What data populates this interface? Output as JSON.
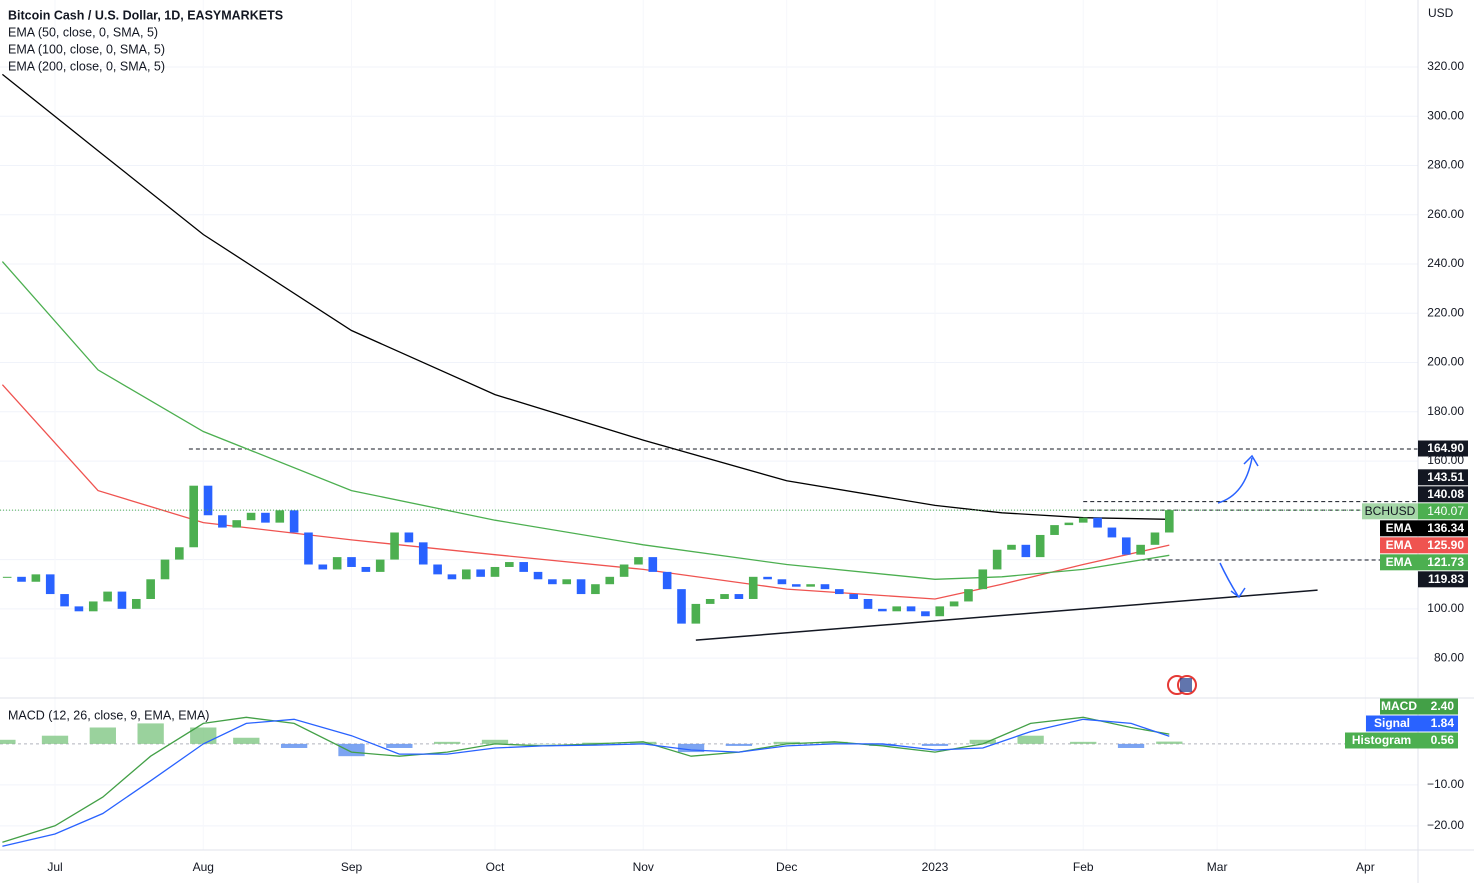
{
  "chart_data": [
    {
      "type": "candlestick",
      "title": "Bitcoin Cash / U.S. Dollar, 1D, EASYMARKETS",
      "currency": "USD",
      "symbol": "BCHUSD",
      "last_label": "140.07",
      "up_color": "#4caf50",
      "down_color": "#2962ff",
      "grid": true,
      "x": [
        -10,
        -7,
        -4,
        -1,
        2,
        5,
        8,
        11,
        14,
        17,
        20,
        23,
        26,
        29,
        32,
        35,
        38,
        41,
        44,
        47,
        50,
        53,
        56,
        59,
        62,
        65,
        68,
        71,
        74,
        77,
        80,
        83,
        86,
        89,
        92,
        95,
        98,
        101,
        104,
        107,
        110,
        113,
        116,
        119,
        122,
        125,
        128,
        131,
        134,
        137,
        140,
        143,
        146,
        149,
        152,
        155,
        158,
        161,
        164,
        167,
        170,
        173,
        176,
        179,
        182,
        185,
        188,
        191,
        194,
        197,
        200,
        203,
        206,
        209,
        212,
        215,
        218,
        221,
        224,
        227,
        230,
        233
      ],
      "close": [
        113,
        111,
        114,
        106,
        101,
        99,
        103,
        107,
        100,
        104,
        112,
        120,
        125,
        150,
        138,
        133,
        136,
        139,
        135,
        140,
        131,
        118,
        116,
        121,
        117,
        115,
        120,
        131,
        127,
        118,
        114,
        112,
        116,
        113,
        117,
        119,
        115,
        112,
        110,
        112,
        106,
        110,
        113,
        118,
        121,
        115,
        108,
        94,
        102,
        104,
        106,
        104,
        113,
        112,
        110,
        109,
        110,
        108,
        106,
        104,
        100,
        99,
        101,
        99,
        97,
        101,
        103,
        108,
        116,
        124,
        126,
        121,
        130,
        134,
        135,
        137,
        133,
        129,
        122,
        126,
        131,
        140.07
      ],
      "series": [
        {
          "name": "EMA",
          "title": "EMA (50, close, 0, SMA, 5)",
          "color": "#ef5350",
          "label": "125.90",
          "x": [
            -11,
            9,
            31,
            62,
            92,
            123,
            153,
            184,
            198,
            215,
            233
          ],
          "values": [
            191,
            148,
            135,
            128,
            122,
            116,
            108,
            104,
            110,
            118,
            125.9
          ]
        },
        {
          "name": "EMA",
          "title": "EMA (100, close, 0, SMA, 5)",
          "color": "#4caf50",
          "label": "121.73",
          "x": [
            -11,
            9,
            31,
            62,
            92,
            123,
            153,
            184,
            198,
            215,
            233
          ],
          "values": [
            241,
            197,
            172,
            148,
            136,
            126,
            118,
            112,
            113,
            116,
            121.73
          ]
        },
        {
          "name": "EMA",
          "title": "EMA (200, close, 0, SMA, 5)",
          "color": "#000000",
          "label": "136.34",
          "x": [
            -11,
            9,
            31,
            62,
            92,
            123,
            153,
            184,
            198,
            215,
            233
          ],
          "values": [
            317,
            286,
            252,
            213,
            187,
            168.5,
            152,
            142,
            139,
            137,
            136.34
          ]
        }
      ],
      "levels": [
        {
          "value": 164.9,
          "label": "164.90",
          "x": 28
        },
        {
          "value": 143.51,
          "label": "143.51",
          "x": 215
        },
        {
          "value": 140.08,
          "label": "140.08",
          "x": 215
        },
        {
          "value": 119.83,
          "label": "119.83",
          "x": 227
        }
      ],
      "trendline": {
        "x": [
          134,
          264
        ],
        "y": [
          87.3,
          107.6
        ]
      },
      "xlim": [
        -11.5,
        285
      ],
      "xticks": [
        {
          "value": 0,
          "label": "Jul"
        },
        {
          "value": 31,
          "label": "Aug"
        },
        {
          "value": 62,
          "label": "Sep"
        },
        {
          "value": 92,
          "label": "Oct"
        },
        {
          "value": 123,
          "label": "Nov"
        },
        {
          "value": 153,
          "label": "Dec"
        },
        {
          "value": 184,
          "label": "2023"
        },
        {
          "value": 215,
          "label": "Feb"
        },
        {
          "value": 243,
          "label": "Mar"
        },
        {
          "value": 274,
          "label": "Apr"
        }
      ],
      "ylim": [
        63.8,
        347.2
      ],
      "yticks": [
        {
          "value": 80,
          "label": "80.00"
        },
        {
          "value": 100,
          "label": "100.00"
        },
        {
          "value": 120,
          "label": "120.00"
        },
        {
          "value": 140,
          "label": "140.00"
        },
        {
          "value": 160,
          "label": "160.00"
        },
        {
          "value": 180,
          "label": "180.00"
        },
        {
          "value": 200,
          "label": "200.00"
        },
        {
          "value": 220,
          "label": "220.00"
        },
        {
          "value": 240,
          "label": "240.00"
        },
        {
          "value": 260,
          "label": "260.00"
        },
        {
          "value": 280,
          "label": "280.00"
        },
        {
          "value": 300,
          "label": "300.00"
        },
        {
          "value": 320,
          "label": "320.00"
        }
      ]
    },
    {
      "type": "macd",
      "title": "MACD (12, 26, close, 9, EMA, EMA)",
      "grid": true,
      "x": [
        -11,
        0,
        10,
        20,
        31,
        40,
        50,
        62,
        72,
        82,
        92,
        102,
        113,
        123,
        133,
        143,
        153,
        163,
        173,
        184,
        194,
        204,
        215,
        225,
        233
      ],
      "series": [
        {
          "name": "MACD",
          "color": "#43a047",
          "label": "2.40",
          "values": [
            -24,
            -20,
            -13,
            -3,
            5,
            6.5,
            5,
            -2,
            -3,
            -2,
            0,
            -0.5,
            0,
            0.5,
            -3,
            -2,
            0,
            0.5,
            -0.5,
            -2,
            0,
            5,
            6.5,
            4,
            2.4
          ]
        },
        {
          "name": "Signal",
          "color": "#2962ff",
          "label": "1.84",
          "values": [
            -25,
            -22,
            -17,
            -9,
            0,
            5,
            6,
            2,
            -2.5,
            -2.5,
            -1,
            -0.5,
            -0.3,
            0,
            -1.5,
            -2,
            -0.5,
            0,
            0,
            -1.5,
            -1,
            3,
            6,
            5,
            1.84
          ]
        }
      ],
      "histogram": {
        "name": "Histogram",
        "label": "0.56",
        "up_color": "#81c784",
        "down_color": "#5b8def",
        "color": "#4caf50",
        "values": [
          1,
          2,
          4,
          5,
          4,
          1.5,
          -1,
          -3,
          -1,
          0.5,
          1,
          0,
          0.3,
          0.5,
          -2,
          -0.5,
          0.5,
          0.5,
          -0.5,
          -0.5,
          1,
          2,
          0.5,
          -1,
          0.56
        ]
      },
      "ylim": [
        -25.9,
        11.2
      ],
      "yticks": [
        {
          "value": -10,
          "label": "−10.00"
        },
        {
          "value": -20,
          "label": "−20.00"
        }
      ]
    }
  ]
}
